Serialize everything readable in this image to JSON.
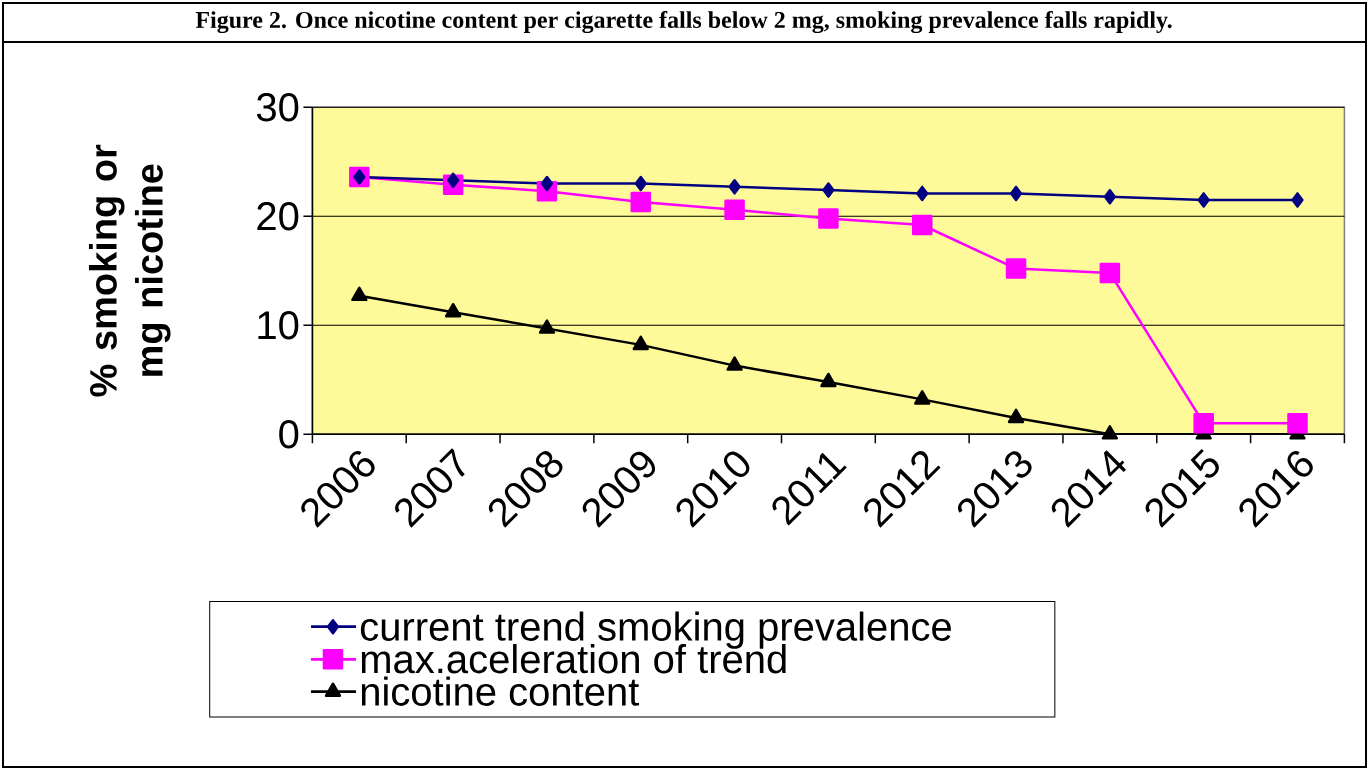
{
  "chart_data": {
    "type": "line",
    "title": "Figure 2. Once nicotine content per cigarette falls below 2 mg, smoking prevalence falls rapidly.",
    "ylabel": "% smoking or mg nicotine",
    "categories": [
      "2006",
      "2007",
      "2008",
      "2009",
      "2010",
      "2011",
      "2012",
      "2013",
      "2014",
      "2015",
      "2016"
    ],
    "series": [
      {
        "name": "current trend smoking prevalence",
        "color": "#000080",
        "marker": "diamond",
        "values": [
          23.6,
          23.3,
          23.0,
          23.0,
          22.7,
          22.4,
          22.1,
          22.1,
          21.8,
          21.5,
          21.5
        ]
      },
      {
        "name": "max.aceleration of trend",
        "color": "#ff00ff",
        "marker": "square",
        "values": [
          23.6,
          22.9,
          22.3,
          21.3,
          20.6,
          19.8,
          19.2,
          15.2,
          14.8,
          1.0,
          1.0
        ]
      },
      {
        "name": "nicotine content",
        "color": "#000000",
        "marker": "triangle",
        "values": [
          12.7,
          11.2,
          9.7,
          8.2,
          6.3,
          4.8,
          3.2,
          1.5,
          0,
          0,
          0
        ]
      }
    ],
    "ylim": [
      0,
      30
    ],
    "yticks": [
      0,
      10,
      20,
      30
    ],
    "grid": "y",
    "legend": "bottom"
  }
}
